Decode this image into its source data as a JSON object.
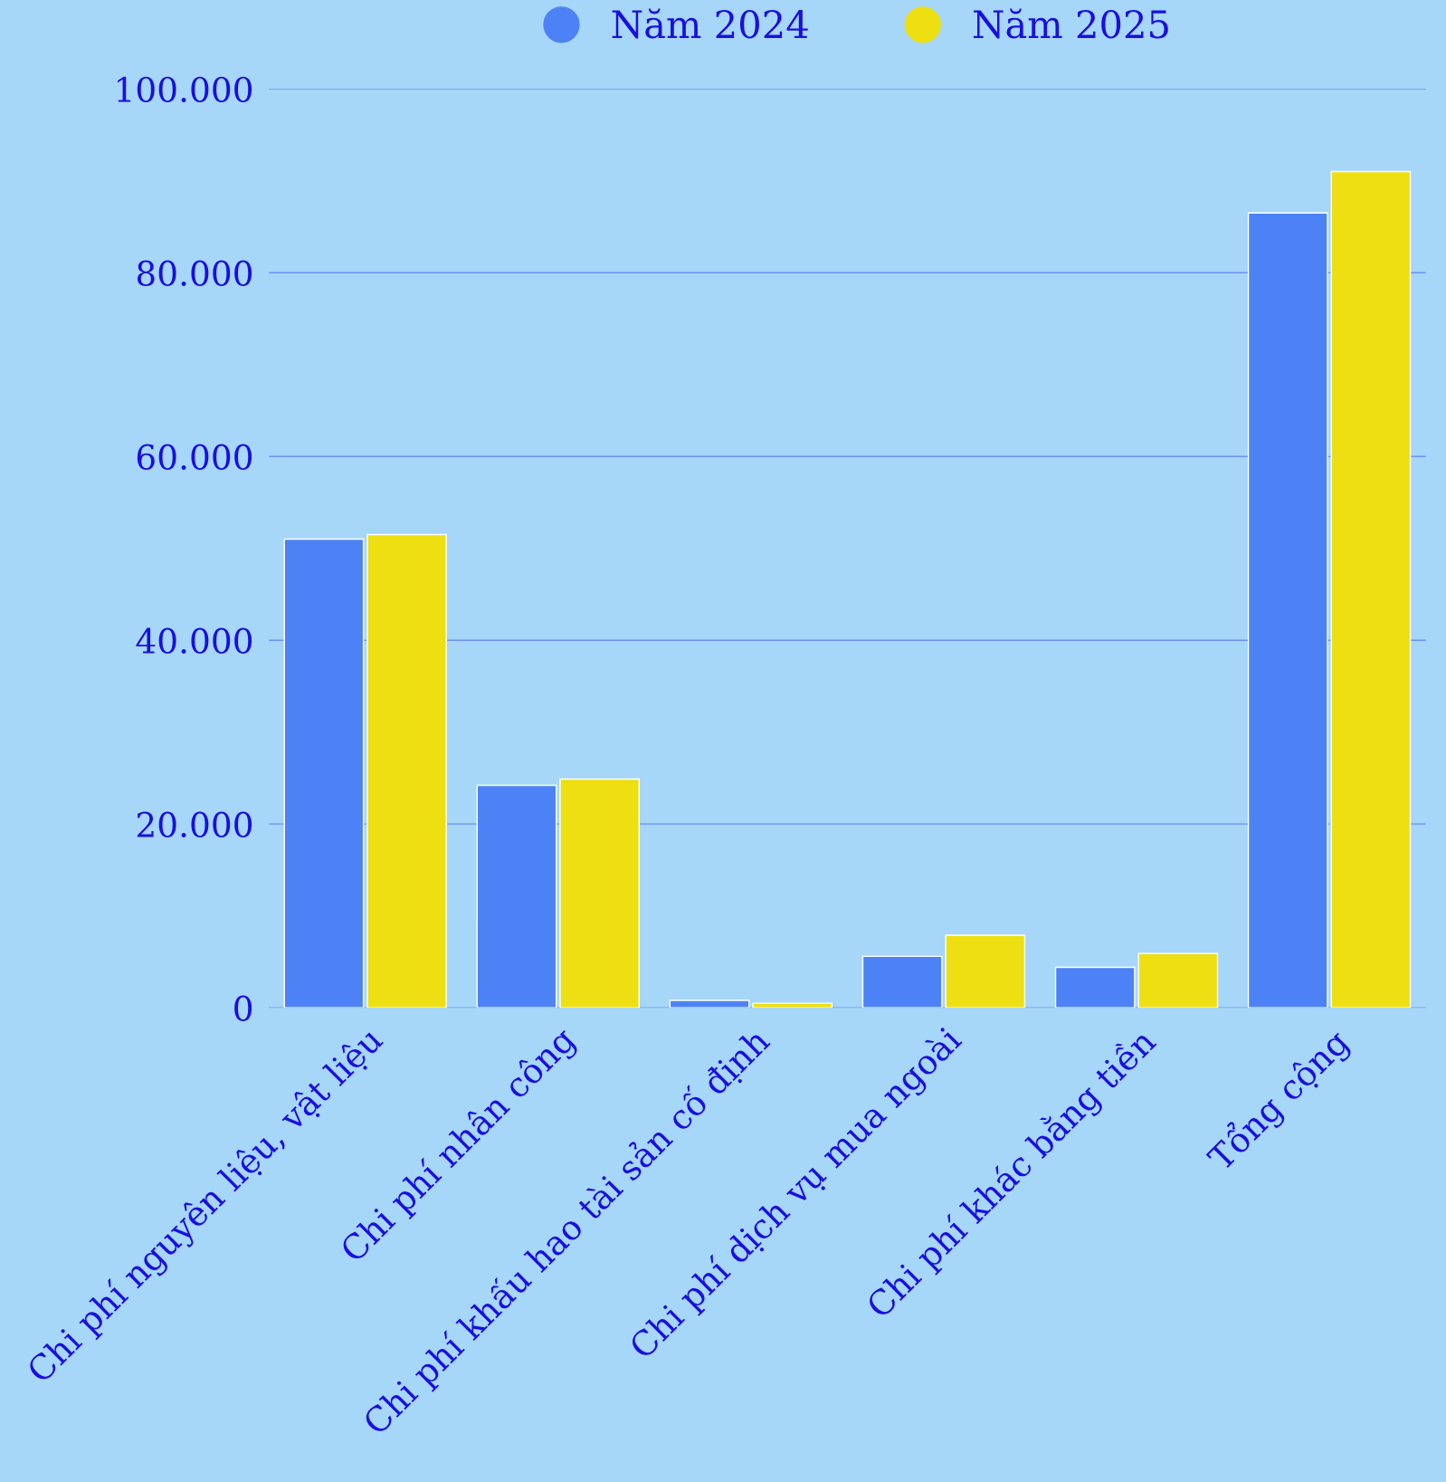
{
  "chart_data": {
    "type": "bar",
    "categories": [
      "Chi phí nguyên liệu, vật liệu",
      "Chi phí nhân công",
      "Chi phí khấu hao tài sản cố định",
      "Chi phí dịch vụ mua ngoài",
      "Chi phí khác bằng tiền",
      "Tổng cộng"
    ],
    "series": [
      {
        "name": "Năm 2024",
        "color": "#4d82f7",
        "values": [
          51000,
          24200,
          800,
          5600,
          4400,
          86500
        ]
      },
      {
        "name": "Năm 2025",
        "color": "#eedf12",
        "values": [
          51500,
          24900,
          500,
          7900,
          5900,
          91000
        ]
      }
    ],
    "ylim": [
      0,
      100000
    ],
    "yticks": [
      {
        "value": 0,
        "label": "0"
      },
      {
        "value": 20000,
        "label": "20.000"
      },
      {
        "value": 40000,
        "label": "40.000"
      },
      {
        "value": 60000,
        "label": "60.000"
      },
      {
        "value": 80000,
        "label": "80.000"
      },
      {
        "value": 100000,
        "label": "100.000"
      }
    ],
    "grid": "y",
    "legend": "top"
  }
}
